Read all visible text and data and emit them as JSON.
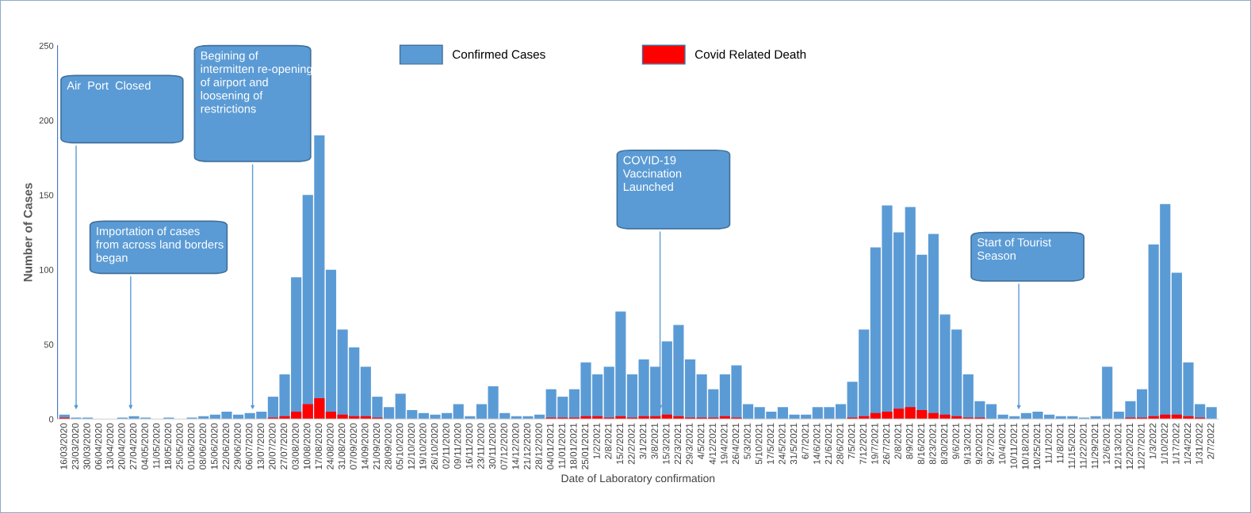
{
  "chart_data": {
    "type": "bar",
    "xlabel": "Date of Laboratory confirmation",
    "ylabel": "Number of Cases",
    "categories": [
      "16/03/2020",
      "23/03/2020",
      "30/03/2020",
      "06/04/2020",
      "13/04/2020",
      "20/04/2020",
      "27/04/2020",
      "04/05/2020",
      "11/05/2020",
      "18/05/2020",
      "25/05/2020",
      "01/06/2020",
      "08/06/2020",
      "15/06/2020",
      "22/06/2020",
      "29/06/2020",
      "06/07/2020",
      "13/07/2020",
      "20/07/2020",
      "27/07/2020",
      "03/08/2020",
      "10/08/2020",
      "17/08/2020",
      "24/08/2020",
      "31/08/2020",
      "07/09/2020",
      "14/09/2020",
      "21/09/2020",
      "28/09/2020",
      "05/10/2020",
      "12/10/2020",
      "19/10/2020",
      "26/10/2020",
      "02/11/2020",
      "09/11/2020",
      "16/11/2020",
      "23/11/2020",
      "30/11/2020",
      "07/12/2020",
      "14/12/2020",
      "21/12/2020",
      "28/12/2020",
      "04/01/2021",
      "11/01/2021",
      "18/01/2021",
      "25/01/2021",
      "1/2/2021",
      "2/8/2021",
      "15/2/2021",
      "22/2/2021",
      "3/1/2021",
      "3/8/2021",
      "15/3/2021",
      "22/3/2021",
      "29/3/2021",
      "4/5/2021",
      "4/12/2021",
      "19/4/2021",
      "26/4/2021",
      "5/3/2021",
      "5/10/2021",
      "17/5/2021",
      "24/5/2021",
      "31/5/2021",
      "6/7/2021",
      "14/6/2021",
      "21/6/2021",
      "28/6/2021",
      "7/5/2021",
      "7/12/2021",
      "19/7/2021",
      "26/7/2021",
      "2/8/2021",
      "8/9/2021",
      "8/16/2021",
      "8/23/2021",
      "8/30/2021",
      "9/6/2021",
      "9/13/2021",
      "9/20/2021",
      "9/27/2021",
      "10/4/2021",
      "10/11/2021",
      "10/18/2021",
      "10/25/2021",
      "11/1/2021",
      "11/8/2021",
      "11/15/2021",
      "11/22/2021",
      "11/29/2021",
      "12/6/2021",
      "12/13/2021",
      "12/20/2021",
      "12/27/2021",
      "1/3/2022",
      "1/10/2022",
      "1/17/2022",
      "1/24/2022",
      "1/31/2022",
      "2/7/2022"
    ],
    "series": [
      {
        "name": "Confirmed Cases",
        "color": "#5b9bd5",
        "values": [
          3,
          1,
          1,
          0,
          0,
          1,
          2,
          1,
          0,
          1,
          0,
          1,
          2,
          3,
          5,
          3,
          4,
          5,
          15,
          30,
          95,
          150,
          190,
          100,
          60,
          48,
          35,
          15,
          8,
          17,
          6,
          4,
          3,
          4,
          10,
          2,
          10,
          22,
          4,
          2,
          2,
          3,
          20,
          15,
          20,
          38,
          30,
          35,
          72,
          30,
          40,
          35,
          52,
          63,
          40,
          30,
          20,
          30,
          36,
          10,
          8,
          5,
          8,
          3,
          3,
          8,
          8,
          10,
          25,
          60,
          115,
          143,
          125,
          142,
          110,
          124,
          70,
          60,
          30,
          12,
          10,
          3,
          2,
          4,
          5,
          3,
          2,
          2,
          1,
          2,
          35,
          5,
          12,
          20,
          117,
          144,
          98,
          38,
          10,
          8
        ]
      },
      {
        "name": "Covid Related Death",
        "color": "#ff0000",
        "values": [
          1,
          0,
          0,
          0,
          0,
          0,
          0,
          0,
          0,
          0,
          0,
          0,
          0,
          0,
          0,
          0,
          0,
          0,
          1,
          2,
          5,
          10,
          14,
          5,
          3,
          2,
          2,
          1,
          0,
          0,
          0,
          0,
          0,
          0,
          0,
          0,
          0,
          0,
          0,
          0,
          0,
          0,
          1,
          1,
          1,
          2,
          2,
          1,
          2,
          1,
          2,
          2,
          3,
          2,
          1,
          1,
          1,
          2,
          1,
          0,
          0,
          0,
          0,
          0,
          0,
          0,
          0,
          0,
          1,
          2,
          4,
          5,
          7,
          8,
          6,
          4,
          3,
          2,
          1,
          1,
          0,
          0,
          0,
          0,
          0,
          0,
          0,
          0,
          0,
          0,
          0,
          0,
          1,
          1,
          2,
          3,
          3,
          2,
          1,
          0
        ]
      }
    ],
    "ylim": [
      0,
      250
    ],
    "yticks": [
      0,
      50,
      100,
      150,
      200,
      250
    ],
    "legend": "top",
    "annotations": [
      "Air  Port  Closed",
      "Importation of cases\nfrom across land borders\nbegan",
      "Begining of\nintermitten re-opening\nof airport and\nloosening of\nrestrictions",
      "COVID-19\nVaccination\nLaunched",
      "Start of Tourist\nSeason"
    ]
  }
}
